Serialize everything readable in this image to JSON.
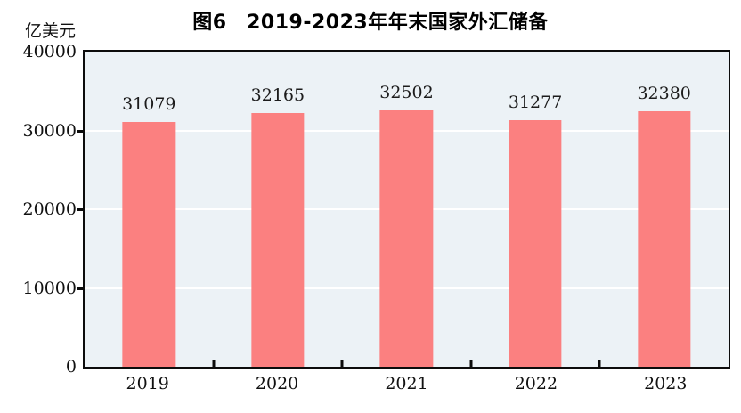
{
  "figure": {
    "title": "图6　2019-2023年年末国家外汇储备",
    "unit_label": "亿美元"
  },
  "chart_data": {
    "type": "bar",
    "title": "图6　2019-2023年年末国家外汇储备",
    "unit_label": "亿美元",
    "categories": [
      "2019",
      "2020",
      "2021",
      "2022",
      "2023"
    ],
    "values": [
      31079,
      32165,
      32502,
      31277,
      32380
    ],
    "xlabel": "",
    "ylabel": "亿美元",
    "ylim": [
      0,
      40000
    ],
    "y_ticks": [
      0,
      10000,
      20000,
      30000,
      40000
    ],
    "grid": true,
    "legend_position": "none",
    "bar_color": "#fb8080",
    "plot_bg_color": "#ecf2f6",
    "gridline_color": "#ffffff",
    "frame_color": "#0c0c0c"
  }
}
